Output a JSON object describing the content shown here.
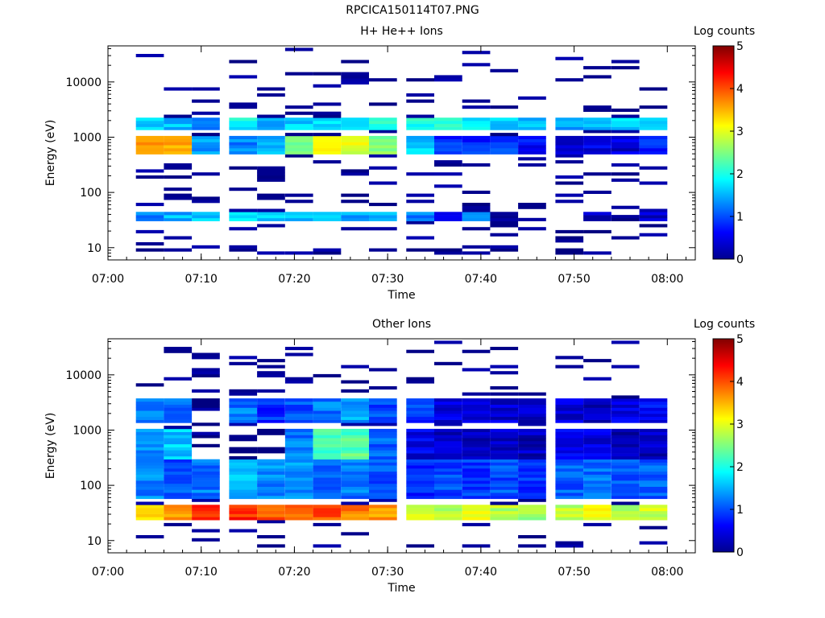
{
  "figure_title": "RPCICA150114T07.PNG",
  "chart_data": [
    {
      "type": "heatmap",
      "title": "H+ He++ Ions",
      "xlabel": "Time",
      "ylabel": "Energy (eV)",
      "x_ticks": [
        "07:00",
        "07:10",
        "07:20",
        "07:30",
        "07:40",
        "07:50",
        "08:00"
      ],
      "x_range": [
        "07:00",
        "08:03"
      ],
      "y_scale": "log",
      "y_ticks": [
        "10",
        "100",
        "1000",
        "10000"
      ],
      "y_range": [
        6,
        45000
      ],
      "time_bins_start": [
        "07:03",
        "07:06",
        "07:09",
        "07:13",
        "07:16",
        "07:19",
        "07:22",
        "07:25",
        "07:28",
        "07:32",
        "07:35",
        "07:38",
        "07:41",
        "07:44",
        "07:48",
        "07:51",
        "07:54",
        "07:57"
      ],
      "colorbar": {
        "label": "Log counts",
        "ticks": [
          "0",
          "1",
          "2",
          "3",
          "4",
          "5"
        ],
        "range": [
          0,
          5
        ]
      },
      "features": [
        {
          "energy_range_eV": [
            1300,
            2300
          ],
          "log_counts": [
            1.7,
            1.6,
            1.3,
            1.9,
            1.4,
            1.6,
            1.8,
            1.9,
            2.0,
            2.0,
            2.0,
            1.8,
            1.7,
            1.6,
            1.5,
            1.6,
            1.7,
            1.6
          ]
        },
        {
          "energy_range_eV": [
            500,
            1100
          ],
          "log_counts": [
            3.6,
            3.5,
            1.4,
            1.3,
            1.5,
            2.3,
            3.3,
            3.0,
            2.5,
            1.6,
            0.8,
            0.8,
            1.0,
            0.7,
            0.4,
            0.5,
            0.4,
            0.8
          ]
        },
        {
          "energy_range_eV": [
            30,
            45
          ],
          "log_counts": [
            1.3,
            1.5,
            1.7,
            1.8,
            1.6,
            1.6,
            1.5,
            1.5,
            1.5,
            1.2,
            0.4,
            1.2,
            0.3,
            0.0,
            0.0,
            0.3,
            0.0,
            0.3
          ]
        },
        {
          "energy_range_eV": [
            7,
            10
          ],
          "log_counts": [
            0,
            0,
            0,
            0,
            0,
            0,
            0.1,
            0,
            0,
            0,
            0.1,
            0,
            0,
            0,
            0,
            0,
            0,
            0
          ]
        }
      ]
    },
    {
      "type": "heatmap",
      "title": "Other Ions",
      "xlabel": "Time",
      "ylabel": "Energy (eV)",
      "x_ticks": [
        "07:00",
        "07:10",
        "07:20",
        "07:30",
        "07:40",
        "07:50",
        "08:00"
      ],
      "x_range": [
        "07:00",
        "08:03"
      ],
      "y_scale": "log",
      "y_ticks": [
        "10",
        "100",
        "1000",
        "10000"
      ],
      "y_range": [
        6,
        45000
      ],
      "time_bins_start": [
        "07:03",
        "07:06",
        "07:09",
        "07:13",
        "07:16",
        "07:19",
        "07:22",
        "07:25",
        "07:28",
        "07:32",
        "07:35",
        "07:38",
        "07:41",
        "07:44",
        "07:48",
        "07:51",
        "07:54",
        "07:57"
      ],
      "colorbar": {
        "label": "Log counts",
        "ticks": [
          "0",
          "1",
          "2",
          "3",
          "4",
          "5"
        ],
        "range": [
          0,
          5
        ]
      },
      "features": [
        {
          "energy_range_eV": [
            25,
            45
          ],
          "log_counts": [
            3.4,
            3.7,
            4.1,
            4.2,
            4.0,
            3.9,
            4.0,
            3.8,
            3.6,
            2.9,
            2.7,
            3.0,
            2.8,
            2.7,
            2.8,
            3.0,
            2.8,
            2.9
          ]
        },
        {
          "energy_range_eV": [
            60,
            300
          ],
          "log_counts": [
            1.3,
            1.0,
            1.2,
            1.5,
            1.3,
            1.4,
            1.0,
            1.2,
            1.0,
            0.8,
            1.0,
            0.9,
            1.0,
            0.9,
            1.1,
            1.2,
            1.0,
            1.1
          ]
        },
        {
          "energy_range_eV": [
            300,
            1000
          ],
          "log_counts": [
            1.3,
            1.6,
            0,
            0,
            0,
            1.2,
            2.2,
            2.3,
            1.1,
            0.5,
            0.3,
            0.3,
            0.3,
            0.3,
            0.5,
            0.5,
            0.3,
            0.3
          ]
        },
        {
          "energy_range_eV": [
            1400,
            3800
          ],
          "log_counts": [
            1.3,
            1.2,
            0,
            1.2,
            0.8,
            1.0,
            1.2,
            1.4,
            1.0,
            0.9,
            0.5,
            0.5,
            0.4,
            0.3,
            0.4,
            0.3,
            0.5,
            0.6
          ]
        }
      ]
    }
  ]
}
